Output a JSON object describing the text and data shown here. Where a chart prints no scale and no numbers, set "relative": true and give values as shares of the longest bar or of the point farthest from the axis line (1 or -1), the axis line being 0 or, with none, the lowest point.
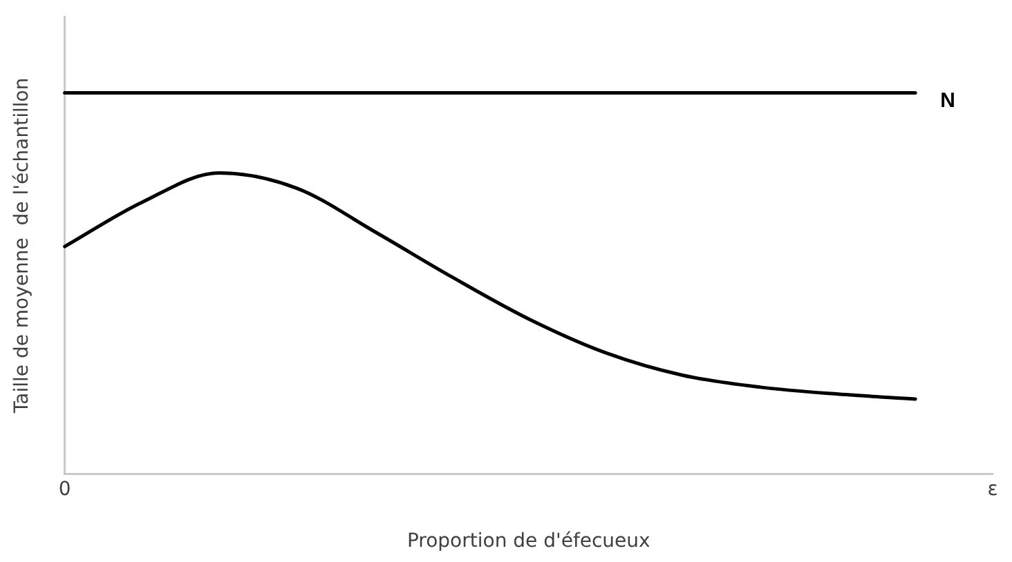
{
  "chart_data": {
    "type": "line",
    "xlabel": "Proportion de d'éfecueux",
    "ylabel": "Taille de moyenne  de l'échantillon",
    "relative": true,
    "categories": [
      "0",
      null,
      null,
      null,
      null,
      null,
      null,
      null,
      null,
      null,
      null,
      null,
      "ε"
    ],
    "tick_labels": "x",
    "grid": false,
    "legend": false,
    "marker": "none",
    "line_style": "solid",
    "series": [
      {
        "name": "N",
        "color": "#000000",
        "values": [
          1,
          1,
          1,
          1,
          1,
          1,
          1,
          1,
          1,
          1,
          1,
          1,
          null
        ]
      },
      {
        "color": "#000000",
        "values": [
          0.597,
          0.713,
          0.79,
          0.75,
          0.637,
          0.518,
          0.407,
          0.318,
          0.259,
          0.228,
          0.21,
          0.197,
          null
        ]
      }
    ]
  }
}
